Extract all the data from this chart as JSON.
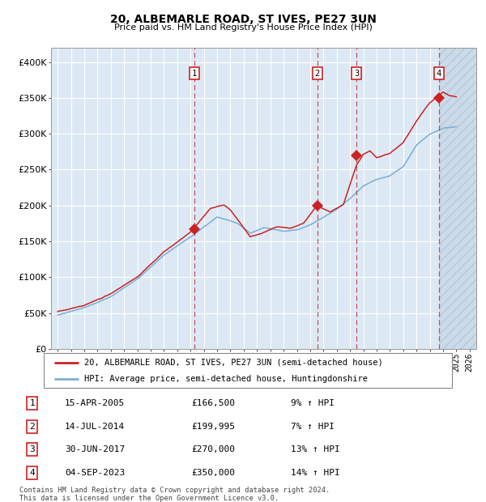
{
  "title": "20, ALBEMARLE ROAD, ST IVES, PE27 3UN",
  "subtitle": "Price paid vs. HM Land Registry's House Price Index (HPI)",
  "ylim": [
    0,
    420000
  ],
  "yticks": [
    0,
    50000,
    100000,
    150000,
    200000,
    250000,
    300000,
    350000,
    400000
  ],
  "ytick_labels": [
    "£0",
    "£50K",
    "£100K",
    "£150K",
    "£200K",
    "£250K",
    "£300K",
    "£350K",
    "£400K"
  ],
  "xlim_start": 1994.5,
  "xlim_end": 2026.5,
  "hpi_color": "#7aaed6",
  "price_color": "#cc2222",
  "bg_color": "#dce9f5",
  "grid_color": "#ffffff",
  "transaction_dates": [
    2005.29,
    2014.54,
    2017.5,
    2023.67
  ],
  "transaction_prices": [
    166500,
    199995,
    270000,
    350000
  ],
  "transaction_labels": [
    "1",
    "2",
    "3",
    "4"
  ],
  "legend_line1": "20, ALBEMARLE ROAD, ST IVES, PE27 3UN (semi-detached house)",
  "legend_line2": "HPI: Average price, semi-detached house, Huntingdonshire",
  "table_data": [
    [
      "1",
      "15-APR-2005",
      "£166,500",
      "9% ↑ HPI"
    ],
    [
      "2",
      "14-JUL-2014",
      "£199,995",
      "7% ↑ HPI"
    ],
    [
      "3",
      "30-JUN-2017",
      "£270,000",
      "13% ↑ HPI"
    ],
    [
      "4",
      "04-SEP-2023",
      "£350,000",
      "14% ↑ HPI"
    ]
  ],
  "footer1": "Contains HM Land Registry data © Crown copyright and database right 2024.",
  "footer2": "This data is licensed under the Open Government Licence v3.0."
}
